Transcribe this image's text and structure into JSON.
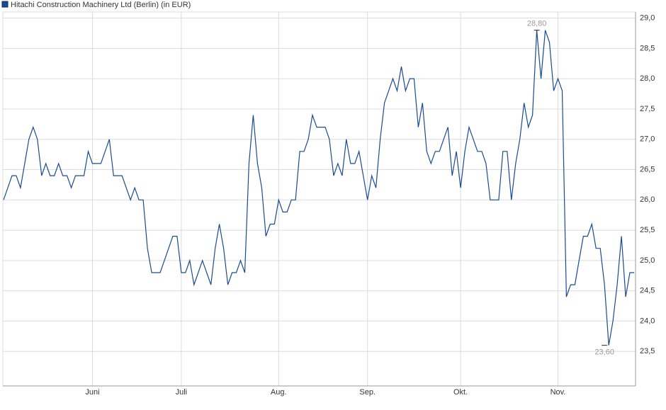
{
  "chart_data": {
    "type": "line",
    "title": "Hitachi Construction Machinery Ltd (Berlin) (in EUR)",
    "series": [
      {
        "name": "Hitachi Construction Machinery Ltd (Berlin) (in EUR)",
        "color": "#1a4a94",
        "x": [
          0,
          1,
          2,
          3,
          4,
          5,
          6,
          7,
          8,
          9,
          10,
          11,
          12,
          13,
          14,
          15,
          16,
          17,
          18,
          19,
          20,
          21,
          22,
          23,
          24,
          25,
          26,
          27,
          28,
          29,
          30,
          31,
          32,
          33,
          34,
          35,
          36,
          37,
          38,
          39,
          40,
          41,
          42,
          43,
          44,
          45,
          46,
          47,
          48,
          49,
          50,
          51,
          52,
          53,
          54,
          55,
          56,
          57,
          58,
          59,
          60,
          61,
          62,
          63,
          64,
          65,
          66,
          67,
          68,
          69,
          70,
          71,
          72,
          73,
          74,
          75,
          76,
          77,
          78,
          79,
          80,
          81,
          82,
          83,
          84,
          85,
          86,
          87,
          88,
          89,
          90,
          91,
          92,
          93,
          94,
          95,
          96,
          97,
          98,
          99,
          100,
          101,
          102,
          103,
          104,
          105,
          106,
          107,
          108,
          109,
          110,
          111,
          112,
          113,
          114,
          115,
          116,
          117,
          118,
          119,
          120,
          121,
          122,
          123,
          124,
          125,
          126,
          127,
          128,
          129,
          130,
          131,
          132,
          133,
          134,
          135,
          136,
          137,
          138,
          139,
          140,
          141,
          142,
          143,
          144,
          145,
          146,
          147,
          148,
          149
        ],
        "values": [
          26.0,
          26.2,
          26.4,
          26.4,
          26.2,
          26.6,
          27.0,
          27.2,
          27.0,
          26.4,
          26.6,
          26.4,
          26.4,
          26.6,
          26.4,
          26.4,
          26.2,
          26.4,
          26.4,
          26.4,
          26.8,
          26.6,
          26.6,
          26.6,
          26.8,
          27.0,
          26.4,
          26.4,
          26.4,
          26.2,
          26.0,
          26.2,
          26.0,
          26.0,
          25.2,
          24.8,
          24.8,
          24.8,
          25.0,
          25.2,
          25.4,
          25.4,
          24.8,
          24.8,
          25.0,
          24.6,
          24.8,
          25.0,
          24.8,
          24.6,
          25.2,
          25.6,
          25.2,
          24.6,
          24.8,
          24.8,
          25.0,
          24.8,
          26.6,
          27.4,
          26.6,
          26.2,
          25.4,
          25.6,
          25.6,
          26.0,
          25.8,
          25.8,
          26.0,
          26.0,
          26.8,
          26.8,
          27.0,
          27.4,
          27.2,
          27.2,
          27.2,
          27.0,
          26.4,
          26.6,
          26.4,
          27.0,
          26.6,
          26.6,
          26.8,
          26.4,
          26.0,
          26.4,
          26.2,
          27.0,
          27.6,
          27.8,
          28.0,
          27.8,
          28.2,
          27.8,
          28.0,
          28.0,
          27.2,
          27.6,
          26.8,
          26.6,
          26.8,
          26.8,
          27.0,
          27.2,
          26.4,
          26.8,
          26.2,
          26.8,
          27.2,
          27.0,
          26.8,
          26.8,
          26.6,
          26.0,
          26.0,
          26.0,
          26.8,
          26.8,
          26.0,
          26.6,
          27.0,
          27.6,
          27.2,
          27.4,
          28.8,
          28.0,
          28.8,
          28.6,
          27.8,
          28.0,
          27.8,
          24.4,
          24.6,
          24.6,
          25.0,
          25.4,
          25.4,
          25.6,
          25.2,
          25.2,
          24.6,
          23.6,
          24.0,
          24.6,
          25.4,
          24.4,
          24.8,
          24.8
        ]
      }
    ],
    "annotations": [
      {
        "x": 126,
        "y": 28.8,
        "label": "28,80"
      },
      {
        "x": 142,
        "y": 23.6,
        "label": "23,60"
      }
    ],
    "xlim": [
      0,
      149
    ],
    "xticks": [
      {
        "value": 21,
        "label": "Juni"
      },
      {
        "value": 42,
        "label": "Juli"
      },
      {
        "value": 65,
        "label": "Aug."
      },
      {
        "value": 86,
        "label": "Sep."
      },
      {
        "value": 108,
        "label": "Okt."
      },
      {
        "value": 131,
        "label": "Nov."
      }
    ],
    "ylim": [
      22.93,
      29.1
    ],
    "yticks": [
      {
        "value": 23.5,
        "label": "23,5"
      },
      {
        "value": 24,
        "label": "24,0"
      },
      {
        "value": 24.5,
        "label": "24,5"
      },
      {
        "value": 25,
        "label": "25,0"
      },
      {
        "value": 25.5,
        "label": "25,5"
      },
      {
        "value": 26,
        "label": "26,0"
      },
      {
        "value": 26.5,
        "label": "26,5"
      },
      {
        "value": 27,
        "label": "27,0"
      },
      {
        "value": 27.5,
        "label": "27,5"
      },
      {
        "value": 28,
        "label": "28,0"
      },
      {
        "value": 28.5,
        "label": "28,5"
      },
      {
        "value": 29,
        "label": "29,0"
      }
    ],
    "grid": true
  }
}
